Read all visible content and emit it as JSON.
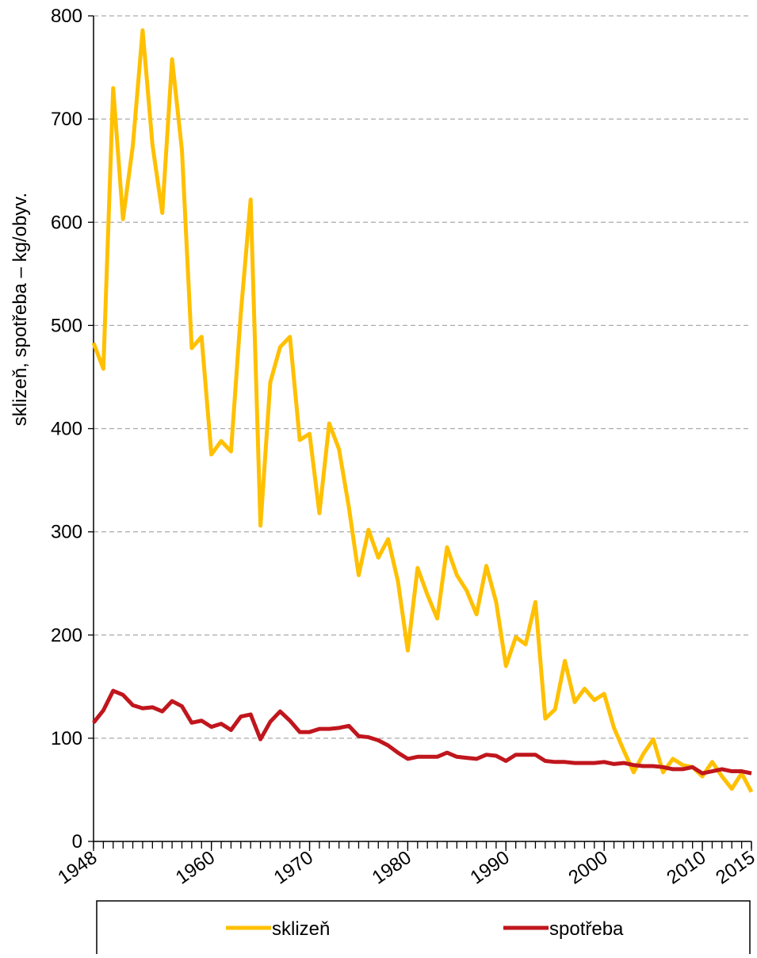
{
  "chart_data": {
    "type": "line",
    "y_label": "sklizeň, spotřeba – kg/obyv.",
    "x": [
      1948,
      1949,
      1950,
      1951,
      1952,
      1953,
      1954,
      1955,
      1956,
      1957,
      1958,
      1959,
      1960,
      1961,
      1962,
      1963,
      1964,
      1965,
      1966,
      1967,
      1968,
      1969,
      1970,
      1971,
      1972,
      1973,
      1974,
      1975,
      1976,
      1977,
      1978,
      1979,
      1980,
      1981,
      1982,
      1983,
      1984,
      1985,
      1986,
      1987,
      1988,
      1989,
      1990,
      1991,
      1992,
      1993,
      1994,
      1995,
      1996,
      1997,
      1998,
      1999,
      2000,
      2001,
      2002,
      2003,
      2004,
      2005,
      2006,
      2007,
      2008,
      2009,
      2010,
      2011,
      2012,
      2013,
      2014,
      2015
    ],
    "series": [
      {
        "name": "sklizeň",
        "color": "#ffc000",
        "values": [
          483,
          458,
          730,
          603,
          674,
          786,
          675,
          609,
          758,
          670,
          478,
          489,
          375,
          388,
          378,
          512,
          622,
          306,
          445,
          479,
          489,
          389,
          395,
          318,
          405,
          380,
          324,
          258,
          302,
          275,
          293,
          252,
          185,
          265,
          239,
          216,
          285,
          258,
          243,
          220,
          267,
          232,
          170,
          198,
          191,
          232,
          119,
          128,
          175,
          135,
          148,
          137,
          143,
          110,
          88,
          67,
          85,
          99,
          67,
          80,
          74,
          72,
          63,
          77,
          63,
          51,
          66,
          48
        ]
      },
      {
        "name": "spotřeba",
        "color": "#c0161d",
        "values": [
          115,
          127,
          146,
          142,
          132,
          129,
          130,
          126,
          136,
          131,
          115,
          117,
          111,
          114,
          108,
          121,
          123,
          99,
          116,
          126,
          117,
          106,
          106,
          109,
          109,
          110,
          112,
          102,
          101,
          98,
          93,
          86,
          80,
          82,
          82,
          82,
          86,
          82,
          81,
          80,
          84,
          83,
          78,
          84,
          84,
          84,
          78,
          77,
          77,
          76,
          76,
          76,
          77,
          75,
          76,
          74,
          73,
          73,
          72,
          70,
          70,
          72,
          66,
          68,
          70,
          68,
          68,
          66
        ]
      }
    ],
    "xlim": [
      1948,
      2015
    ],
    "xticks": [
      1948,
      1960,
      1970,
      1980,
      1990,
      2000,
      2010,
      2015
    ],
    "ylim": [
      0,
      800
    ],
    "yticks": [
      0,
      100,
      200,
      300,
      400,
      500,
      600,
      700,
      800
    ],
    "grid": true,
    "legend": "bottom"
  }
}
